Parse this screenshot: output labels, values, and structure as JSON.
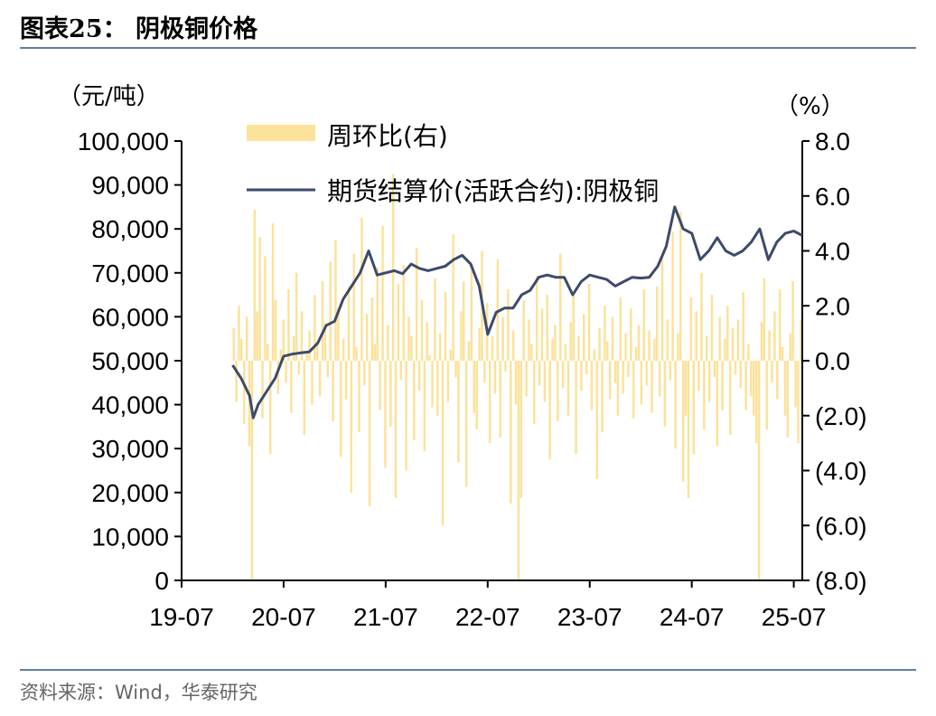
{
  "figure": {
    "title": "图表25：  阴极铜价格",
    "source": "资料来源：Wind，华泰研究"
  },
  "colors": {
    "bar": "#fbe29a",
    "line": "#3c4a6b",
    "axis": "#000000",
    "rule": "#5b7fa6"
  },
  "chart_data": {
    "type": "bar+line",
    "title": "阴极铜价格",
    "left_axis": {
      "unit": "（元/吨）",
      "ylim": [
        0,
        100000
      ],
      "ticks": [
        "100,000",
        "90,000",
        "80,000",
        "70,000",
        "60,000",
        "50,000",
        "40,000",
        "30,000",
        "20,000",
        "10,000",
        "0"
      ]
    },
    "right_axis": {
      "unit": "（%）",
      "ylim": [
        -8,
        8
      ],
      "ticks": [
        "8.0",
        "6.0",
        "4.0",
        "2.0",
        "0.0",
        "(2.0)",
        "(4.0)",
        "(6.0)",
        "(8.0)"
      ]
    },
    "x_ticks": [
      "19-07",
      "20-07",
      "21-07",
      "22-07",
      "23-07",
      "24-07",
      "25-07"
    ],
    "xlim": [
      "2019-07",
      "2025-08"
    ],
    "legend": [
      {
        "key": "bar",
        "label": "周环比(右)"
      },
      {
        "key": "line",
        "label": "期货结算价(活跃合约):阴极铜"
      }
    ],
    "series": [
      {
        "name": "期货结算价(活跃合约):阴极铜",
        "type": "line",
        "axis": "left",
        "points": [
          [
            "2020-01",
            49000
          ],
          [
            "2020-02",
            46000
          ],
          [
            "2020-03",
            42000
          ],
          [
            "2020-03",
            37000
          ],
          [
            "2020-04",
            40000
          ],
          [
            "2020-05",
            43000
          ],
          [
            "2020-06",
            46000
          ],
          [
            "2020-07",
            51000
          ],
          [
            "2020-08",
            51500
          ],
          [
            "2020-09",
            51800
          ],
          [
            "2020-10",
            52000
          ],
          [
            "2020-11",
            54000
          ],
          [
            "2020-12",
            58000
          ],
          [
            "2021-01",
            59000
          ],
          [
            "2021-02",
            64000
          ],
          [
            "2021-03",
            67000
          ],
          [
            "2021-04",
            70000
          ],
          [
            "2021-05",
            75000
          ],
          [
            "2021-06",
            69500
          ],
          [
            "2021-07",
            70000
          ],
          [
            "2021-08",
            70500
          ],
          [
            "2021-09",
            69800
          ],
          [
            "2021-10",
            72000
          ],
          [
            "2021-11",
            71000
          ],
          [
            "2021-12",
            70500
          ],
          [
            "2022-01",
            71000
          ],
          [
            "2022-02",
            71500
          ],
          [
            "2022-03",
            73000
          ],
          [
            "2022-04",
            74000
          ],
          [
            "2022-05",
            72000
          ],
          [
            "2022-06",
            67000
          ],
          [
            "2022-07",
            56000
          ],
          [
            "2022-08",
            61000
          ],
          [
            "2022-09",
            62000
          ],
          [
            "2022-10",
            62000
          ],
          [
            "2022-11",
            65000
          ],
          [
            "2022-12",
            66000
          ],
          [
            "2023-01",
            69000
          ],
          [
            "2023-02",
            69500
          ],
          [
            "2023-03",
            69000
          ],
          [
            "2023-04",
            69000
          ],
          [
            "2023-05",
            65000
          ],
          [
            "2023-06",
            68000
          ],
          [
            "2023-07",
            69500
          ],
          [
            "2023-08",
            69000
          ],
          [
            "2023-09",
            68500
          ],
          [
            "2023-10",
            67000
          ],
          [
            "2023-11",
            68000
          ],
          [
            "2023-12",
            69000
          ],
          [
            "2024-01",
            68800
          ],
          [
            "2024-02",
            69000
          ],
          [
            "2024-03",
            71500
          ],
          [
            "2024-04",
            76000
          ],
          [
            "2024-05",
            85000
          ],
          [
            "2024-06",
            80000
          ],
          [
            "2024-07",
            79000
          ],
          [
            "2024-08",
            73000
          ],
          [
            "2024-09",
            75000
          ],
          [
            "2024-10",
            78000
          ],
          [
            "2024-11",
            75000
          ],
          [
            "2024-12",
            74000
          ],
          [
            "2025-01",
            75000
          ],
          [
            "2025-02",
            77000
          ],
          [
            "2025-03",
            80000
          ],
          [
            "2025-04",
            73000
          ],
          [
            "2025-05",
            77000
          ],
          [
            "2025-06",
            79000
          ],
          [
            "2025-07",
            79500
          ],
          [
            "2025-08",
            78500
          ]
        ]
      },
      {
        "name": "周环比(右)",
        "type": "bar",
        "axis": "right",
        "weekly_values_pct": [
          1.2,
          -1.5,
          2.0,
          0.8,
          -2.3,
          1.6,
          -3.1,
          -8.0,
          5.5,
          1.8,
          4.5,
          -2.1,
          3.8,
          0.6,
          -3.4,
          5.0,
          2.2,
          -1.2,
          0.4,
          1.5,
          -0.8,
          2.6,
          -1.9,
          0.9,
          3.2,
          -0.5,
          1.8,
          -2.7,
          0.3,
          1.1,
          -1.6,
          2.4,
          0.7,
          -1.3,
          2.9,
          1.4,
          -0.6,
          3.6,
          -2.2,
          4.4,
          1.9,
          -3.5,
          0.8,
          -1.4,
          2.7,
          -4.8,
          3.9,
          0.5,
          -2.6,
          5.2,
          -0.9,
          1.7,
          -5.3,
          2.3,
          0.6,
          3.4,
          -1.8,
          4.9,
          -3.9,
          1.3,
          -2.4,
          6.8,
          -5.0,
          2.8,
          -0.7,
          3.5,
          -4.0,
          1.6,
          0.9,
          -2.9,
          4.1,
          -1.1,
          2.2,
          -3.3,
          1.4,
          0.2,
          -1.7,
          3.0,
          -2.0,
          1.0,
          -6.0,
          2.5,
          -1.5,
          0.4,
          4.6,
          -0.6,
          -3.7,
          1.8,
          2.9,
          -4.6,
          0.7,
          3.3,
          -1.9,
          -2.5,
          1.2,
          4.0,
          -0.8,
          2.1,
          -3.0,
          0.9,
          -1.2,
          3.7,
          -2.8,
          1.6,
          -0.4,
          2.6,
          -5.2,
          1.1,
          -1.6,
          -8.0,
          -5.0,
          2.2,
          -1.3,
          1.5,
          0.6,
          -2.3,
          3.1,
          -0.9,
          1.9,
          -1.5,
          2.4,
          -3.6,
          0.8,
          1.3,
          -2.2,
          3.9,
          -1.0,
          0.6,
          -2.0,
          1.4,
          2.5,
          -3.4,
          0.9,
          -1.1,
          1.7,
          -0.5,
          2.8,
          -1.8,
          0.4,
          -4.3,
          1.2,
          -2.6,
          2.0,
          0.7,
          -1.4,
          1.6,
          -0.8,
          -2.0,
          2.3,
          -1.2,
          1.0,
          -0.6,
          1.9,
          -2.1,
          0.5,
          1.3,
          -1.6,
          2.6,
          -0.9,
          1.1,
          -1.9,
          0.8,
          2.7,
          -1.3,
          3.8,
          -2.4,
          1.5,
          -0.7,
          4.7,
          -3.2,
          1.0,
          5.4,
          -4.4,
          -2.0,
          -5.0,
          2.3,
          -3.4,
          1.8,
          -1.1,
          3.2,
          -2.5,
          0.9,
          -1.5,
          2.4,
          -0.6,
          -3.1,
          1.6,
          -1.8,
          0.8,
          2.0,
          -2.7,
          1.2,
          -0.5,
          1.5,
          -1.0,
          2.5,
          -1.8,
          0.6,
          -1.3,
          -2.0,
          -3.0,
          -8.0,
          1.4,
          3.0,
          -2.5,
          1.1,
          -0.8,
          1.8,
          -1.4,
          2.6,
          0.5,
          -2.0,
          -2.8,
          1.0,
          2.9,
          -1.7,
          -3.0,
          1.5
        ]
      }
    ]
  }
}
